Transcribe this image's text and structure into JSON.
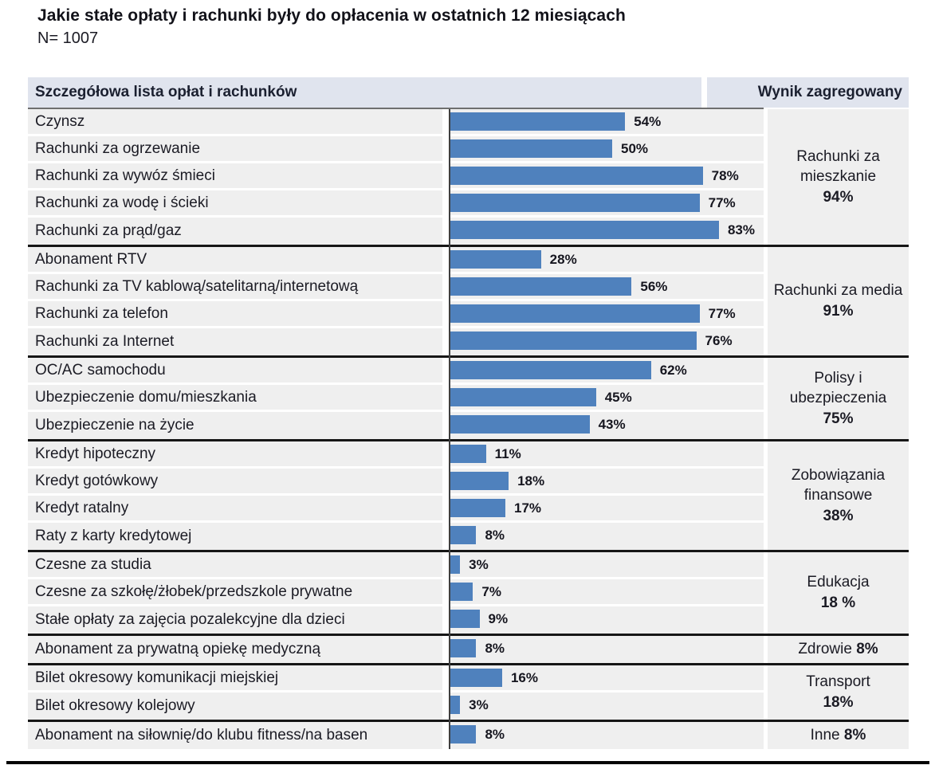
{
  "title": "Jakie stałe opłaty i rachunki były do opłacenia w ostatnich 12 miesiącach",
  "sample_label": "N= 1007",
  "table": {
    "header_left": "Szczegółowa lista opłat i rachunków",
    "header_right": "Wynik zagregowany"
  },
  "colors": {
    "bar": "#4f81bd",
    "header_bg": "#e0e4ee",
    "row_bg": "#efefef",
    "group_divider": "#161616",
    "axis": "#3f3f3f",
    "text": "#1b1b24"
  },
  "chart_data": {
    "type": "bar",
    "orientation": "horizontal",
    "unit": "%",
    "xlim": [
      0,
      100
    ],
    "grid": false,
    "legend": false,
    "title": "Jakie stałe opłaty i rachunki były do opłacenia w ostatnich 12 miesiącach",
    "n": 1007,
    "column_headers": [
      "Szczegółowa lista opłat i rachunków",
      "Wynik zagregowany"
    ],
    "groups": [
      {
        "aggregate": {
          "label": "Rachunki za mieszkanie",
          "value_label": "94%",
          "inline": false
        },
        "items": [
          {
            "label": "Czynsz",
            "value": 54,
            "value_label": "54%"
          },
          {
            "label": "Rachunki za ogrzewanie",
            "value": 50,
            "value_label": "50%"
          },
          {
            "label": "Rachunki za wywóz śmieci",
            "value": 78,
            "value_label": "78%"
          },
          {
            "label": "Rachunki za wodę i ścieki",
            "value": 77,
            "value_label": "77%"
          },
          {
            "label": "Rachunki za prąd/gaz",
            "value": 83,
            "value_label": "83%"
          }
        ]
      },
      {
        "aggregate": {
          "label": "Rachunki za media",
          "value_label": "91%",
          "inline": false
        },
        "items": [
          {
            "label": "Abonament RTV",
            "value": 28,
            "value_label": "28%"
          },
          {
            "label": "Rachunki za TV kablową/satelitarną/internetową",
            "value": 56,
            "value_label": "56%"
          },
          {
            "label": "Rachunki za telefon",
            "value": 77,
            "value_label": "77%"
          },
          {
            "label": "Rachunki za Internet",
            "value": 76,
            "value_label": "76%"
          }
        ]
      },
      {
        "aggregate": {
          "label": "Polisy i ubezpieczenia",
          "value_label": "75%",
          "inline": false
        },
        "items": [
          {
            "label": "OC/AC samochodu",
            "value": 62,
            "value_label": "62%"
          },
          {
            "label": "Ubezpieczenie domu/mieszkania",
            "value": 45,
            "value_label": "45%"
          },
          {
            "label": "Ubezpieczenie na życie",
            "value": 43,
            "value_label": "43%"
          }
        ]
      },
      {
        "aggregate": {
          "label": "Zobowiązania finansowe",
          "value_label": "38%",
          "inline": false
        },
        "items": [
          {
            "label": "Kredyt hipoteczny",
            "value": 11,
            "value_label": "11%"
          },
          {
            "label": "Kredyt gotówkowy",
            "value": 18,
            "value_label": "18%"
          },
          {
            "label": "Kredyt ratalny",
            "value": 17,
            "value_label": "17%"
          },
          {
            "label": "Raty z karty kredytowej",
            "value": 8,
            "value_label": "8%"
          }
        ]
      },
      {
        "aggregate": {
          "label": "Edukacja",
          "value_label": "18 %",
          "inline": false
        },
        "items": [
          {
            "label": "Czesne za studia",
            "value": 3,
            "value_label": "3%"
          },
          {
            "label": "Czesne za szkołę/żłobek/przedszkole prywatne",
            "value": 7,
            "value_label": "7%"
          },
          {
            "label": "Stałe opłaty za zajęcia pozalekcyjne dla dzieci",
            "value": 9,
            "value_label": "9%"
          }
        ]
      },
      {
        "aggregate": {
          "label": "Zdrowie",
          "value_label": "8%",
          "inline": true
        },
        "items": [
          {
            "label": "Abonament za prywatną opiekę medyczną",
            "value": 8,
            "value_label": "8%"
          }
        ]
      },
      {
        "aggregate": {
          "label": "Transport",
          "value_label": "18%",
          "inline": false
        },
        "items": [
          {
            "label": "Bilet okresowy komunikacji miejskiej",
            "value": 16,
            "value_label": "16%"
          },
          {
            "label": "Bilet okresowy kolejowy",
            "value": 3,
            "value_label": "3%"
          }
        ]
      },
      {
        "aggregate": {
          "label": "Inne",
          "value_label": "8%",
          "inline": true
        },
        "items": [
          {
            "label": "Abonament na siłownię/do klubu fitness/na basen",
            "value": 8,
            "value_label": "8%"
          }
        ]
      }
    ]
  }
}
